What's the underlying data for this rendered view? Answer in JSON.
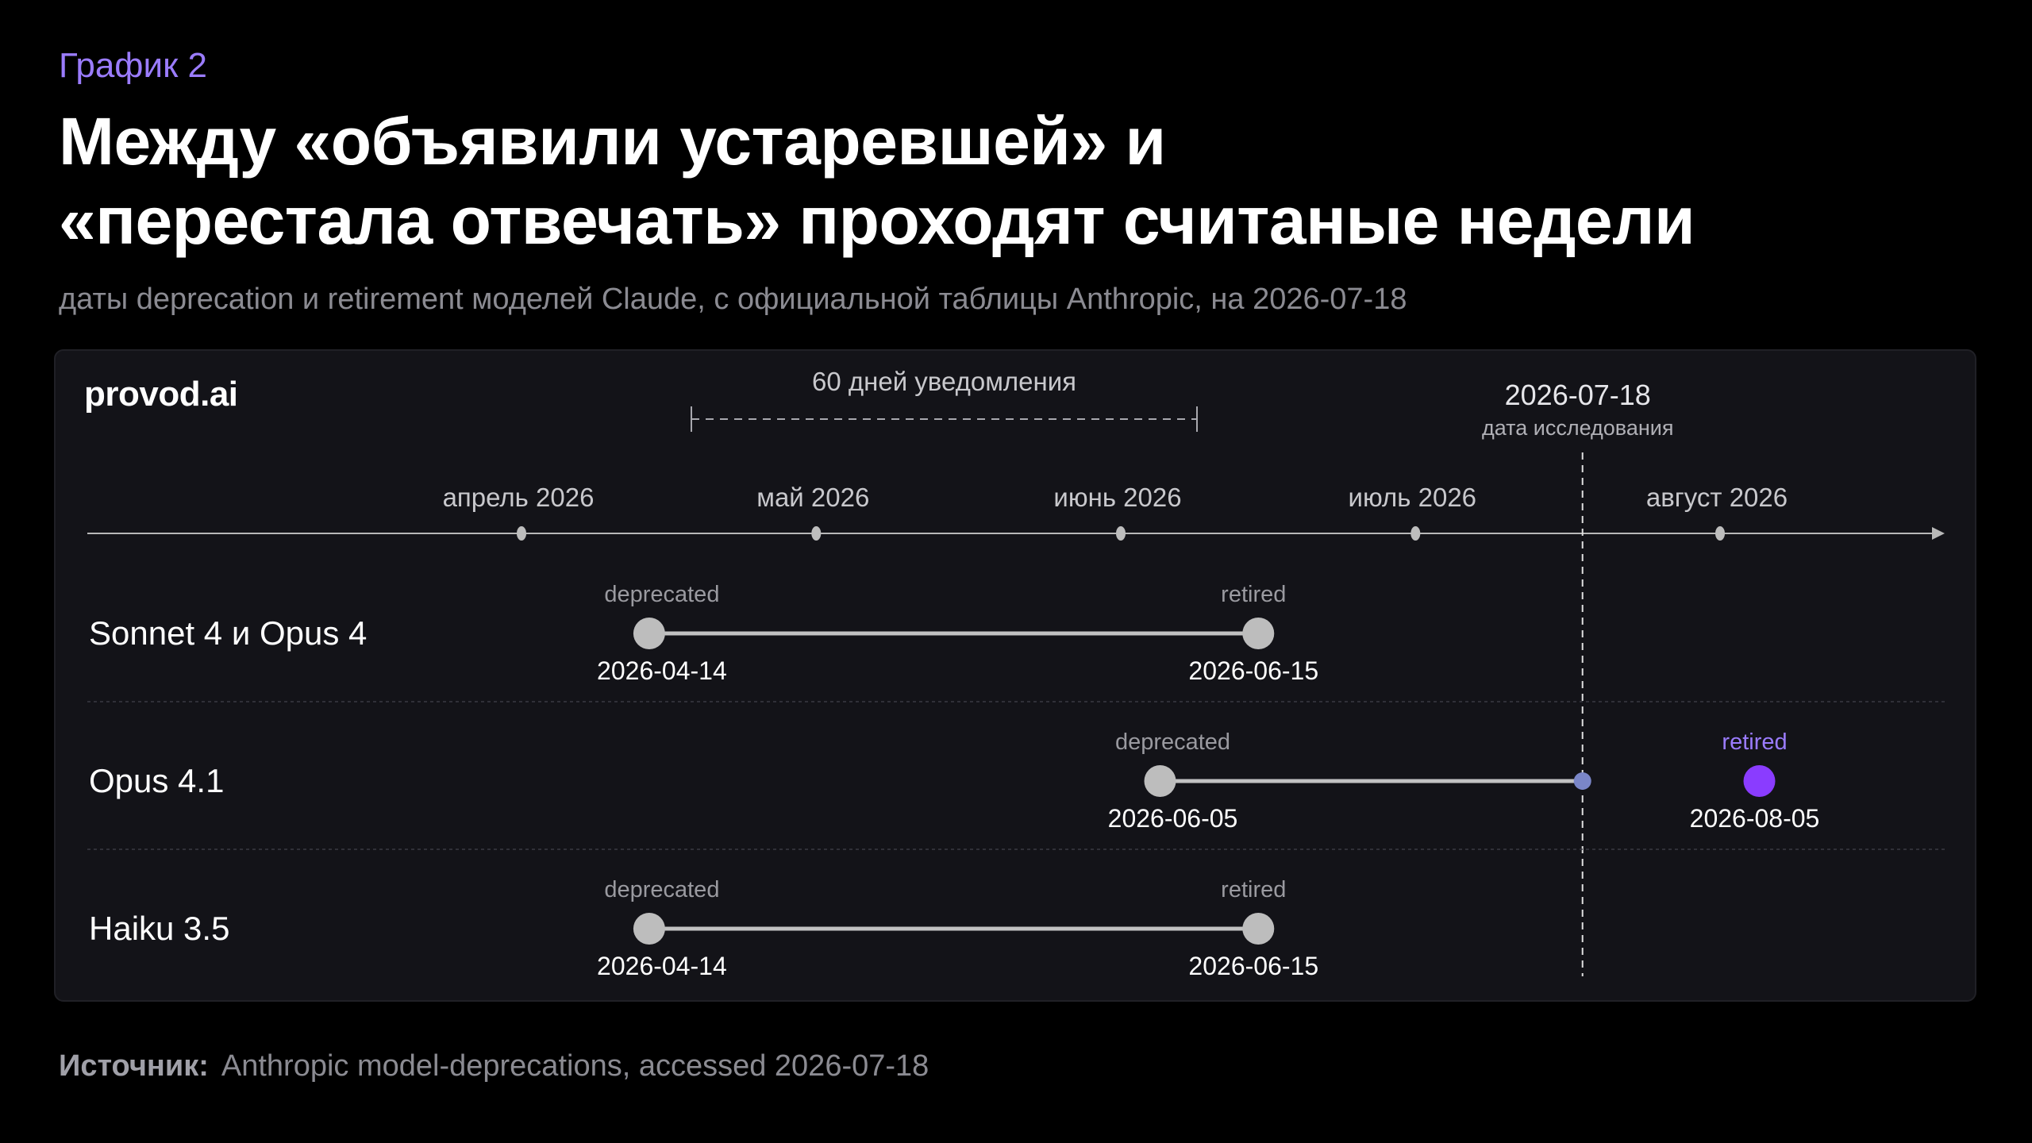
{
  "header": {
    "eyebrow": "График 2",
    "title_line1": "Между «объявили устаревшей» и",
    "title_line2": "«перестала отвечать» проходят считаные недели",
    "subtitle": "даты deprecation и retirement моделей Claude, с официальной таблицы Anthropic, на 2026-07-18"
  },
  "brand": "provod.ai",
  "footer": {
    "source_label": "Источник:",
    "source_text": "Anthropic model-deprecations, accessed 2026-07-18"
  },
  "colors": {
    "background": "#000000",
    "panel": "#131318",
    "accent": "#9b7cff",
    "highlight_start": "#3d5cff",
    "highlight_end": "#8a3cff",
    "muted_line": "#bdbdbd"
  },
  "chart_data": {
    "type": "timeline",
    "x_axis": {
      "type": "date",
      "ticks": [
        {
          "label": "апрель 2026",
          "date": "2026-04-01"
        },
        {
          "label": "май 2026",
          "date": "2026-05-01"
        },
        {
          "label": "июнь 2026",
          "date": "2026-06-01"
        },
        {
          "label": "июль 2026",
          "date": "2026-07-01"
        },
        {
          "label": "август 2026",
          "date": "2026-08-01"
        }
      ]
    },
    "notice_period": {
      "label": "60 дней уведомления",
      "start": "2026-04-14",
      "end": "2026-06-13"
    },
    "reference": {
      "date": "2026-07-18",
      "label": "дата исследования"
    },
    "rows": [
      {
        "name": "Sonnet 4 и Opus 4",
        "start": {
          "label": "deprecated",
          "date": "2026-04-14"
        },
        "end": {
          "label": "retired",
          "date": "2026-06-15"
        },
        "highlight": false
      },
      {
        "name": "Opus 4.1",
        "start": {
          "label": "deprecated",
          "date": "2026-06-05"
        },
        "end": {
          "label": "retired",
          "date": "2026-08-05"
        },
        "highlight": true
      },
      {
        "name": "Haiku 3.5",
        "start": {
          "label": "deprecated",
          "date": "2026-04-14"
        },
        "end": {
          "label": "retired",
          "date": "2026-06-15"
        },
        "highlight": false
      }
    ]
  }
}
